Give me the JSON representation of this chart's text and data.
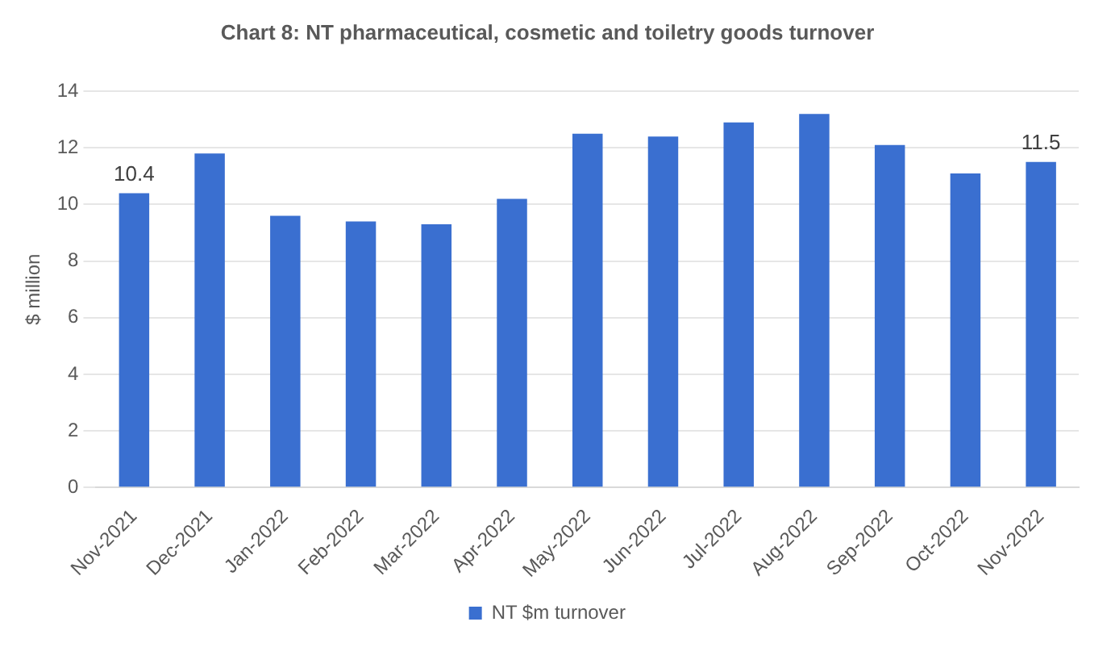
{
  "chart_data": {
    "type": "bar",
    "title": "Chart 8: NT pharmaceutical, cosmetic and toiletry goods turnover",
    "ylabel": "$ million",
    "categories": [
      "Nov-2021",
      "Dec-2021",
      "Jan-2022",
      "Feb-2022",
      "Mar-2022",
      "Apr-2022",
      "May-2022",
      "Jun-2022",
      "Jul-2022",
      "Aug-2022",
      "Sep-2022",
      "Oct-2022",
      "Nov-2022"
    ],
    "series": [
      {
        "name": "NT $m turnover",
        "color": "#3a6fd0",
        "values": [
          10.4,
          11.8,
          9.6,
          9.4,
          9.3,
          10.2,
          12.5,
          12.4,
          12.9,
          13.2,
          12.1,
          11.1,
          11.5
        ],
        "value_labels": [
          "10.4",
          null,
          null,
          null,
          null,
          null,
          null,
          null,
          null,
          null,
          null,
          null,
          "11.5"
        ]
      }
    ],
    "ylim": [
      0,
      14
    ],
    "yticks": [
      0,
      2,
      4,
      6,
      8,
      10,
      12,
      14
    ],
    "grid": "y",
    "legend": "bottom"
  }
}
